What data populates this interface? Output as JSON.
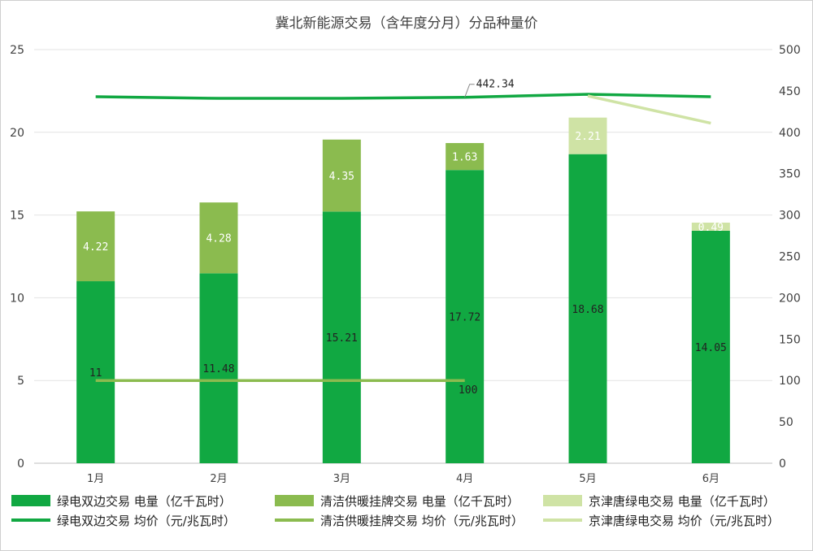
{
  "chart_data": {
    "type": "bar",
    "stacked": true,
    "title": "冀北新能源交易（含年度分月）分品种量价",
    "categories": [
      "1月",
      "2月",
      "3月",
      "4月",
      "5月",
      "6月"
    ],
    "left_axis": {
      "ylim": [
        0,
        25
      ],
      "ticks": [
        "0",
        "5",
        "10",
        "15",
        "20",
        "25"
      ]
    },
    "right_axis": {
      "ylim": [
        0,
        500
      ],
      "ticks": [
        "0",
        "50",
        "100",
        "150",
        "200",
        "250",
        "300",
        "350",
        "400",
        "450",
        "500"
      ]
    },
    "bar_series": [
      {
        "name": "绿电双边交易 电量（亿千瓦时）",
        "color": "#11a842",
        "label_color": "#222222",
        "values": [
          11,
          11.48,
          15.21,
          17.72,
          18.68,
          14.05
        ],
        "labels": [
          "11",
          "11.48",
          "15.21",
          "17.72",
          "18.68",
          "14.05"
        ]
      },
      {
        "name": "清洁供暖挂牌交易 电量（亿千瓦时）",
        "color": "#8bbb4f",
        "label_color": "#ffffff",
        "values": [
          4.22,
          4.28,
          4.35,
          1.63,
          null,
          null
        ],
        "labels": [
          "4.22",
          "4.28",
          "4.35",
          "1.63",
          "",
          ""
        ]
      },
      {
        "name": "京津唐绿电交易 电量（亿千瓦时）",
        "color": "#cfe3a5",
        "label_color": "#ffffff",
        "values": [
          null,
          null,
          null,
          null,
          2.21,
          0.49
        ],
        "labels": [
          "",
          "",
          "",
          "",
          "2.21",
          "0.49"
        ]
      }
    ],
    "line_series": [
      {
        "name": "绿电双边交易 均价（元/兆瓦时）",
        "color": "#11a842",
        "axis": "right",
        "values": [
          443,
          441,
          441,
          442.34,
          446,
          443
        ]
      },
      {
        "name": "清洁供暖挂牌交易 均价（元/兆瓦时）",
        "color": "#8bbb4f",
        "axis": "right",
        "values": [
          100,
          100,
          100,
          100,
          null,
          null
        ]
      },
      {
        "name": "京津唐绿电交易 均价（元/兆瓦时）",
        "color": "#cfe3a5",
        "axis": "right",
        "values": [
          null,
          null,
          null,
          null,
          444,
          411
        ]
      }
    ],
    "annotations": [
      {
        "series": "绿电双边交易 均价（元/兆瓦时）",
        "category": "4月",
        "text": "442.34"
      },
      {
        "series": "清洁供暖挂牌交易 均价（元/兆瓦时）",
        "category": "4月",
        "text": "100"
      }
    ],
    "grid": true,
    "legend_position": "bottom"
  }
}
